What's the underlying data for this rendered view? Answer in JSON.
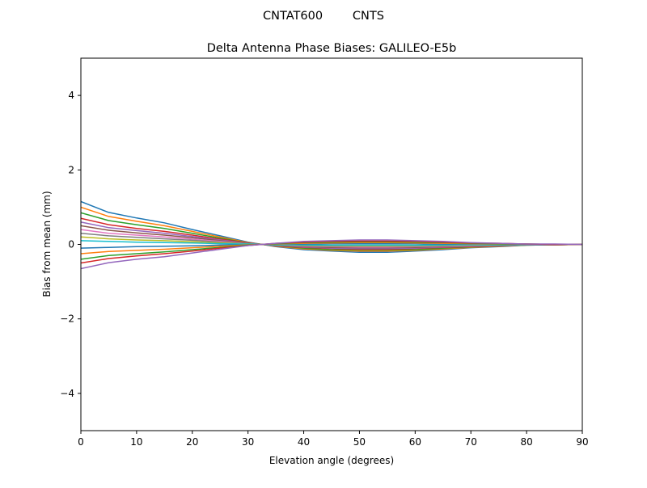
{
  "chart_data": {
    "type": "line",
    "suptitle": "CNTAT600        CNTS",
    "title": "Delta Antenna Phase Biases: GALILEO-E5b",
    "xlabel": "Elevation angle (degrees)",
    "ylabel": "Bias from mean (mm)",
    "xlim": [
      0,
      90
    ],
    "ylim": [
      -5,
      5
    ],
    "xticks": [
      0,
      10,
      20,
      30,
      40,
      50,
      60,
      70,
      80,
      90
    ],
    "yticks": [
      -4,
      -2,
      0,
      2,
      4
    ],
    "ytick_labels": [
      "−4",
      "−2",
      "0",
      "2",
      "4"
    ],
    "grid": false,
    "colors": [
      "#1f77b4",
      "#ff7f0e",
      "#2ca02c",
      "#d62728",
      "#9467bd",
      "#8c564b",
      "#e377c2",
      "#7f7f7f",
      "#bcbd22",
      "#17becf"
    ],
    "x": [
      0,
      5,
      10,
      15,
      20,
      25,
      30,
      35,
      40,
      45,
      50,
      55,
      60,
      65,
      70,
      75,
      80,
      85,
      90
    ],
    "series": [
      {
        "values": [
          1.15,
          0.86,
          0.71,
          0.58,
          0.4,
          0.23,
          0.06,
          -0.06,
          -0.14,
          -0.18,
          -0.21,
          -0.21,
          -0.18,
          -0.14,
          -0.09,
          -0.06,
          -0.02,
          -0.01,
          0
        ]
      },
      {
        "values": [
          1,
          0.75,
          0.62,
          0.5,
          0.35,
          0.2,
          0.05,
          -0.05,
          -0.12,
          -0.16,
          -0.18,
          -0.18,
          -0.16,
          -0.12,
          -0.08,
          -0.05,
          -0.02,
          -0.01,
          0
        ]
      },
      {
        "values": [
          0.85,
          0.64,
          0.53,
          0.43,
          0.3,
          0.17,
          0.04,
          -0.04,
          -0.1,
          -0.14,
          -0.15,
          -0.15,
          -0.14,
          -0.1,
          -0.07,
          -0.04,
          -0.02,
          -0.01,
          0
        ]
      },
      {
        "values": [
          0.7,
          0.53,
          0.43,
          0.35,
          0.25,
          0.14,
          0.04,
          -0.04,
          -0.08,
          -0.11,
          -0.13,
          -0.13,
          -0.11,
          -0.08,
          -0.06,
          -0.04,
          -0.01,
          -0.01,
          0
        ]
      },
      {
        "values": [
          0.6,
          0.45,
          0.37,
          0.3,
          0.21,
          0.12,
          0.03,
          -0.03,
          -0.07,
          -0.1,
          -0.11,
          -0.11,
          -0.1,
          -0.07,
          -0.05,
          -0.03,
          -0.01,
          -0.01,
          0
        ]
      },
      {
        "values": [
          0.5,
          0.38,
          0.31,
          0.25,
          0.18,
          0.1,
          0.03,
          -0.03,
          -0.06,
          -0.08,
          -0.09,
          -0.09,
          -0.08,
          -0.06,
          -0.04,
          -0.03,
          -0.01,
          0,
          0
        ]
      },
      {
        "values": [
          0.4,
          0.3,
          0.25,
          0.2,
          0.14,
          0.08,
          0.02,
          -0.02,
          -0.05,
          -0.06,
          -0.07,
          -0.07,
          -0.06,
          -0.05,
          -0.03,
          -0.02,
          -0.01,
          0,
          0
        ]
      },
      {
        "values": [
          0.3,
          0.23,
          0.19,
          0.15,
          0.11,
          0.06,
          0.02,
          -0.02,
          -0.04,
          -0.05,
          -0.05,
          -0.05,
          -0.05,
          -0.04,
          -0.02,
          -0.02,
          -0.01,
          0,
          0
        ]
      },
      {
        "values": [
          0.2,
          0.15,
          0.12,
          0.1,
          0.07,
          0.04,
          0.01,
          -0.01,
          -0.02,
          -0.03,
          -0.04,
          -0.04,
          -0.03,
          -0.02,
          -0.02,
          -0.01,
          0,
          0,
          0
        ]
      },
      {
        "values": [
          0.1,
          0.08,
          0.06,
          0.05,
          0.04,
          0.02,
          0.01,
          -0.01,
          -0.01,
          -0.02,
          -0.02,
          -0.02,
          -0.02,
          -0.01,
          -0.01,
          -0.01,
          0,
          0,
          0
        ]
      },
      {
        "values": [
          -0.1,
          -0.08,
          -0.06,
          -0.05,
          -0.04,
          -0.02,
          -0.01,
          0.01,
          0.01,
          0.02,
          0.02,
          0.02,
          0.02,
          0.01,
          0.01,
          0.01,
          0,
          0,
          0
        ]
      },
      {
        "values": [
          -0.25,
          -0.19,
          -0.16,
          -0.13,
          -0.09,
          -0.05,
          -0.01,
          0.01,
          0.03,
          0.04,
          0.05,
          0.05,
          0.04,
          0.03,
          0.02,
          0.01,
          0.01,
          0,
          0
        ]
      },
      {
        "values": [
          -0.4,
          -0.3,
          -0.25,
          -0.2,
          -0.14,
          -0.08,
          -0.02,
          0.02,
          0.05,
          0.06,
          0.07,
          0.07,
          0.06,
          0.05,
          0.03,
          0.02,
          0.01,
          0,
          0
        ]
      },
      {
        "values": [
          -0.5,
          -0.38,
          -0.31,
          -0.25,
          -0.18,
          -0.1,
          -0.03,
          0.03,
          0.06,
          0.08,
          0.09,
          0.09,
          0.08,
          0.06,
          0.04,
          0.03,
          0.01,
          0,
          0
        ]
      },
      {
        "values": [
          -0.65,
          -0.49,
          -0.4,
          -0.33,
          -0.23,
          -0.13,
          -0.03,
          0.03,
          0.08,
          0.1,
          0.12,
          0.12,
          0.1,
          0.08,
          0.05,
          0.03,
          0.01,
          0.01,
          0
        ]
      }
    ]
  }
}
